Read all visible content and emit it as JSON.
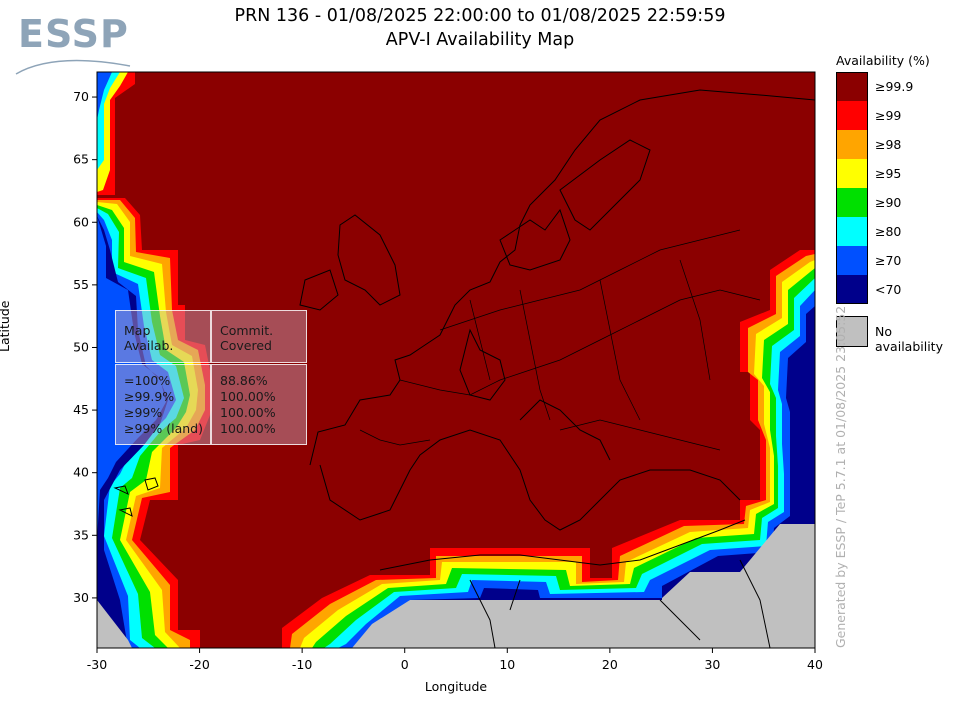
{
  "header": {
    "logo": "ESSP",
    "title_line1": "PRN 136 - 01/08/2025 22:00:00 to 01/08/2025 22:59:59",
    "title_line2": "APV-I Availability Map"
  },
  "axes": {
    "xlabel": "Longitude",
    "ylabel": "Latitude",
    "x_ticks": [
      "-30",
      "-20",
      "-10",
      "0",
      "10",
      "20",
      "30",
      "40"
    ],
    "y_ticks": [
      "70",
      "65",
      "60",
      "55",
      "50",
      "45",
      "40",
      "35",
      "30"
    ],
    "lon_range": [
      -30,
      40
    ],
    "lat_range": [
      26,
      72
    ]
  },
  "legend": {
    "title": "Availability (%)",
    "items": [
      {
        "label": "≥99.9",
        "color": "#8b0000"
      },
      {
        "label": "≥99",
        "color": "#ff0000"
      },
      {
        "label": "≥98",
        "color": "#ffa500"
      },
      {
        "label": "≥95",
        "color": "#ffff00"
      },
      {
        "label": "≥90",
        "color": "#00e000"
      },
      {
        "label": "≥80",
        "color": "#00ffff"
      },
      {
        "label": "≥70",
        "color": "#0050ff"
      },
      {
        "label": "<70",
        "color": "#00008b"
      }
    ],
    "no_availability": {
      "label": "No availability",
      "color": "#c0c0c0"
    }
  },
  "stats_table": {
    "col1_header": [
      "Map",
      "Availab."
    ],
    "col2_header": [
      "Commit.",
      "Covered"
    ],
    "rows": [
      {
        "label": "=100%",
        "value": "88.86%"
      },
      {
        "label": "≥99.9%",
        "value": "100.00%"
      },
      {
        "label": "≥99%",
        "value": "100.00%"
      },
      {
        "label": "≥99% (land)",
        "value": "100.00%"
      }
    ]
  },
  "credit": "Generated by ESSP / TeP 5.7.1 at 01/08/2025 23:05:52"
}
